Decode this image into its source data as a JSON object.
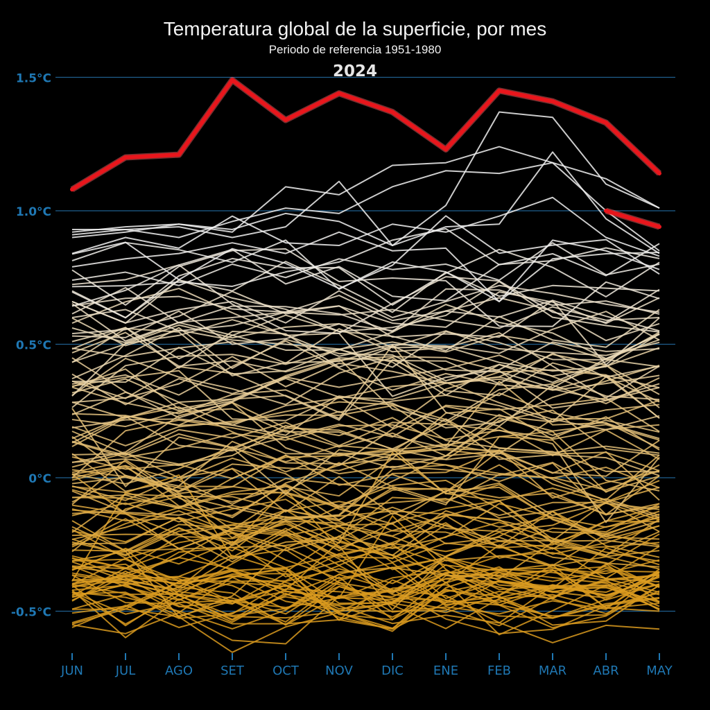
{
  "title": "Temperatura global de la superficie, por mes",
  "subtitle": "Periodo de referencia 1951-1980",
  "year_label": "2024",
  "colors": {
    "background": "#000000",
    "grid": "#1f5f8f",
    "axis_text": "#1f78b4",
    "highlight": "#e8161c",
    "cold": "#d99a1e",
    "warm": "#f0f0f0"
  },
  "chart_data": {
    "type": "line",
    "title": "Temperatura global de la superficie, por mes",
    "subtitle": "Periodo de referencia 1951-1980",
    "xlabel": "",
    "ylabel": "",
    "categories": [
      "JUN",
      "JUL",
      "AGO",
      "SET",
      "OCT",
      "NOV",
      "DIC",
      "ENE",
      "FEB",
      "MAR",
      "ABR",
      "MAY"
    ],
    "ylim": [
      -0.65,
      1.6
    ],
    "yticks": [
      -0.5,
      0,
      0.5,
      1.0,
      1.5
    ],
    "ytick_labels": [
      "-0.5°C",
      "0°C",
      "0.5°C",
      "1.0°C",
      "1.5°C"
    ],
    "grid": true,
    "legend": "none",
    "background_series_count": 145,
    "background_color_scale": "yellow (cold) to white (warm)",
    "highlight_series": [
      {
        "name": "2024",
        "values": [
          1.08,
          1.2,
          1.21,
          1.49,
          1.34,
          1.44,
          1.37,
          1.23,
          1.45,
          1.41,
          1.33,
          1.14
        ]
      },
      {
        "values": [
          null,
          null,
          null,
          null,
          null,
          null,
          null,
          null,
          null,
          null,
          1.0,
          0.94
        ]
      }
    ],
    "series": [
      {
        "values": [
          0.93,
          0.93,
          0.94,
          0.9,
          0.94,
          1.11,
          0.87,
          1.02,
          1.37,
          1.35,
          1.1,
          1.01
        ]
      },
      {
        "values": [
          0.92,
          0.94,
          0.95,
          0.92,
          1.09,
          1.06,
          1.17,
          1.18,
          1.24,
          1.18,
          1.12,
          1.01
        ]
      },
      {
        "values": [
          0.91,
          0.93,
          0.9,
          0.96,
          1.01,
          0.99,
          1.09,
          1.15,
          1.14,
          1.18,
          1.0,
          0.85
        ]
      },
      {
        "values": [
          0.9,
          0.92,
          0.95,
          0.93,
          0.99,
          0.96,
          0.87,
          0.94,
          0.95,
          1.22,
          0.97,
          0.84
        ]
      },
      {
        "values": [
          0.84,
          0.9,
          0.86,
          0.98,
          0.88,
          0.87,
          0.95,
          0.92,
          0.98,
          1.05,
          0.9,
          0.83
        ]
      },
      {
        "values": [
          0.79,
          0.82,
          0.84,
          0.88,
          0.84,
          0.92,
          0.85,
          0.86,
          0.66,
          0.89,
          0.85,
          0.78
        ]
      },
      {
        "values": [
          0.74,
          0.77,
          0.72,
          0.8,
          0.75,
          0.82,
          0.78,
          0.8,
          0.74,
          0.88,
          0.76,
          0.8
        ]
      },
      {
        "values": [
          0.7,
          0.6,
          0.74,
          0.7,
          0.81,
          0.72,
          0.62,
          0.77,
          0.68,
          0.72,
          0.71,
          0.7
        ]
      },
      {
        "values": [
          0.66,
          0.58,
          0.63,
          0.66,
          0.58,
          0.7,
          0.6,
          0.66,
          0.72,
          0.69,
          0.65,
          0.62
        ]
      },
      {
        "values": [
          0.6,
          0.63,
          0.55,
          0.57,
          0.62,
          0.61,
          0.63,
          0.59,
          0.56,
          0.64,
          0.59,
          0.6
        ]
      }
    ]
  }
}
